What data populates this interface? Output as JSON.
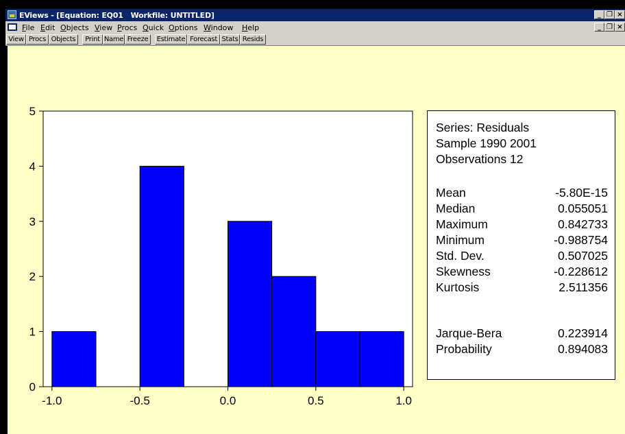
{
  "window": {
    "title": "EViews - [Equation: EQ01   Workfile: UNTITLED]",
    "controls": [
      "_",
      "❐",
      "×"
    ]
  },
  "menu": {
    "items": [
      {
        "label": "File"
      },
      {
        "label": "Edit"
      },
      {
        "label": "Objects"
      },
      {
        "label": "View"
      },
      {
        "label": "Procs"
      },
      {
        "label": "Quick"
      },
      {
        "label": "Options"
      },
      {
        "label": "Window"
      },
      {
        "label": "Help"
      }
    ]
  },
  "toolbar": {
    "buttons": [
      "View",
      "Procs",
      "Objects",
      "Print",
      "Name",
      "Freeze",
      "Estimate",
      "Forecast",
      "Stats",
      "Resids"
    ]
  },
  "colors": {
    "bar_fill": "#0000ff",
    "background": "#ffffc8",
    "titlebar": "#0a246a"
  },
  "chart_data": {
    "type": "bar",
    "title": "",
    "xlabel": "",
    "ylabel": "",
    "bin_width": 0.25,
    "bins": [
      {
        "start": -1.0,
        "end": -0.75,
        "count": 1
      },
      {
        "start": -0.75,
        "end": -0.5,
        "count": 0
      },
      {
        "start": -0.5,
        "end": -0.25,
        "count": 4
      },
      {
        "start": -0.25,
        "end": 0.0,
        "count": 0
      },
      {
        "start": 0.0,
        "end": 0.25,
        "count": 3
      },
      {
        "start": 0.25,
        "end": 0.5,
        "count": 2
      },
      {
        "start": 0.5,
        "end": 0.75,
        "count": 1
      },
      {
        "start": 0.75,
        "end": 1.0,
        "count": 1
      }
    ],
    "xlim": [
      -1.05,
      1.05
    ],
    "ylim": [
      0,
      5
    ],
    "x_ticks": [
      -1.0,
      -0.5,
      0.0,
      0.5,
      1.0
    ],
    "x_tick_labels": [
      "-1.0",
      "-0.5",
      "0.0",
      "0.5",
      "1.0"
    ],
    "y_ticks": [
      0,
      1,
      2,
      3,
      4,
      5
    ],
    "y_tick_labels": [
      "0",
      "1",
      "2",
      "3",
      "4",
      "5"
    ],
    "grid": false,
    "legend": "none"
  },
  "stats": {
    "header": [
      "Series: Residuals",
      "Sample 1990 2001",
      "Observations 12"
    ],
    "rows": [
      {
        "label": "Mean",
        "value": "-5.80E-15"
      },
      {
        "label": "Median",
        "value": "0.055051"
      },
      {
        "label": "Maximum",
        "value": "0.842733"
      },
      {
        "label": "Minimum",
        "value": "-0.988754"
      },
      {
        "label": "Std. Dev.",
        "value": "0.507025"
      },
      {
        "label": "Skewness",
        "value": "-0.228612"
      },
      {
        "label": "Kurtosis",
        "value": "2.511356"
      }
    ],
    "tests": [
      {
        "label": "Jarque-Bera",
        "value": "0.223914"
      },
      {
        "label": "Probability",
        "value": "0.894083"
      }
    ]
  }
}
